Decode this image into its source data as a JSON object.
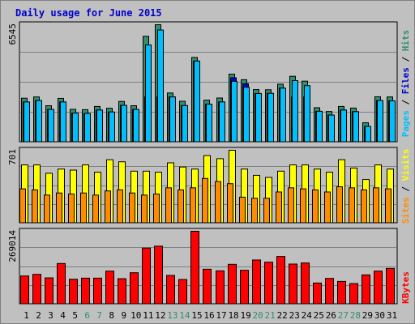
{
  "chart_data": {
    "type": "bar",
    "title": "Daily usage for June 2015",
    "categories": [
      "1",
      "2",
      "3",
      "4",
      "5",
      "6",
      "7",
      "8",
      "9",
      "10",
      "11",
      "12",
      "13",
      "14",
      "15",
      "16",
      "17",
      "18",
      "19",
      "20",
      "21",
      "22",
      "23",
      "24",
      "25",
      "26",
      "27",
      "28",
      "29",
      "30",
      "31"
    ],
    "weekend_days": [
      "6",
      "7",
      "13",
      "14",
      "20",
      "21",
      "27",
      "28"
    ],
    "panels": [
      {
        "id": "hits",
        "max_label": "6545",
        "ymax": 6545,
        "series": [
          {
            "name": "Hits",
            "color": "#2f8f6f",
            "values": [
              2450,
              2520,
              2030,
              2440,
              1830,
              1810,
              1990,
              1890,
              2270,
              2030,
              5900,
              6545,
              2740,
              2280,
              4720,
              2340,
              2460,
              3790,
              3480,
              2930,
              2920,
              3230,
              3670,
              3400,
              1920,
              1710,
              1990,
              1900,
              1080,
              2530,
              2520
            ]
          },
          {
            "name": "Files",
            "color": "#0000cc",
            "values": [
              2240,
              2320,
              1820,
              2240,
              1620,
              1600,
              1790,
              1680,
              2050,
              1820,
              2520,
              2520,
              2520,
              2040,
              4520,
              2120,
              2240,
              3590,
              3260,
              2710,
              2720,
              3010,
              2520,
              2520,
              1720,
              1510,
              1790,
              1700,
              880,
              2320,
              2300
            ]
          },
          {
            "name": "Pages",
            "color": "#00bfff",
            "values": [
              2240,
              2320,
              1820,
              2240,
              1620,
              1600,
              1790,
              1680,
              2050,
              1820,
              5420,
              6250,
              2520,
              2040,
              4520,
              2120,
              2240,
              3390,
              3060,
              2710,
              2720,
              3010,
              3430,
              3150,
              1720,
              1510,
              1790,
              1700,
              880,
              2320,
              2300
            ]
          }
        ]
      },
      {
        "id": "visits",
        "max_label": "701",
        "ymax": 701,
        "series": [
          {
            "name": "Visits",
            "color": "#ffff00",
            "values": [
              560,
              560,
              480,
              520,
              510,
              560,
              490,
              610,
              590,
              500,
              500,
              490,
              580,
              540,
              520,
              650,
              620,
              701,
              520,
              460,
              440,
              500,
              560,
              560,
              520,
              490,
              610,
              530,
              420,
              560,
              520
            ]
          },
          {
            "name": "Sites",
            "color": "#ff8c00",
            "values": [
              330,
              320,
              270,
              290,
              280,
              290,
              270,
              310,
              320,
              290,
              270,
              280,
              340,
              320,
              340,
              430,
              400,
              380,
              250,
              240,
              240,
              300,
              340,
              330,
              320,
              300,
              350,
              340,
              320,
              340,
              330
            ]
          }
        ]
      },
      {
        "id": "kbytes",
        "max_label": "269014",
        "ymax": 269014,
        "series": [
          {
            "name": "KBytes",
            "color": "#ff0000",
            "values": [
              104000,
              110000,
              97000,
              150000,
              92000,
              96000,
              96000,
              122000,
              94000,
              116000,
              207000,
              214000,
              106000,
              91000,
              269014,
              129000,
              123000,
              147000,
              125000,
              163000,
              155000,
              176000,
              148000,
              152000,
              78000,
              95000,
              84000,
              76000,
              108000,
              122000,
              132000
            ]
          }
        ]
      }
    ],
    "legend_labels": {
      "pages": "Pages",
      "files": "Files",
      "hits": "Hits",
      "sites": "Sites",
      "visits": "Visits",
      "kbytes": "KBytes",
      "sep": "/"
    }
  }
}
